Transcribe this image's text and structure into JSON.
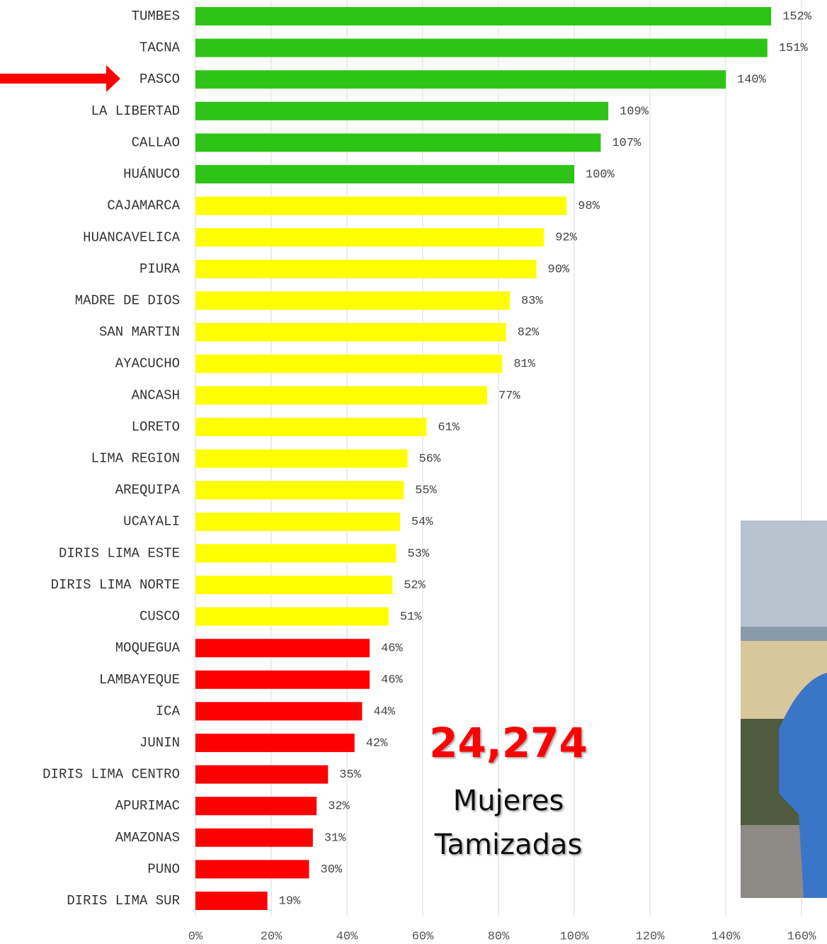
{
  "chart_data": {
    "type": "bar",
    "orientation": "horizontal",
    "categories": [
      "TUMBES",
      "TACNA",
      "PASCO",
      "LA LIBERTAD",
      "CALLAO",
      "HUÁNUCO",
      "CAJAMARCA",
      "HUANCAVELICA",
      "PIURA",
      "MADRE DE DIOS",
      "SAN MARTIN",
      "AYACUCHO",
      "ANCASH",
      "LORETO",
      "LIMA REGION",
      "AREQUIPA",
      "UCAYALI",
      "DIRIS LIMA ESTE",
      "DIRIS LIMA NORTE",
      "CUSCO",
      "MOQUEGUA",
      "LAMBAYEQUE",
      "ICA",
      "JUNIN",
      "DIRIS LIMA CENTRO",
      "APURIMAC",
      "AMAZONAS",
      "PUNO",
      "DIRIS LIMA SUR"
    ],
    "values": [
      152,
      151,
      140,
      109,
      107,
      100,
      98,
      92,
      90,
      83,
      82,
      81,
      77,
      61,
      56,
      55,
      54,
      53,
      52,
      51,
      46,
      46,
      44,
      42,
      35,
      32,
      31,
      30,
      19
    ],
    "value_labels": [
      "152%",
      "151%",
      "140%",
      "109%",
      "107%",
      "100%",
      "98%",
      "92%",
      "90%",
      "83%",
      "82%",
      "81%",
      "77%",
      "61%",
      "56%",
      "55%",
      "54%",
      "53%",
      "52%",
      "51%",
      "46%",
      "46%",
      "44%",
      "42%",
      "35%",
      "32%",
      "31%",
      "30%",
      "19%"
    ],
    "colors": [
      "#2ec417",
      "#2ec417",
      "#2ec417",
      "#2ec417",
      "#2ec417",
      "#2ec417",
      "#ffff00",
      "#ffff00",
      "#ffff00",
      "#ffff00",
      "#ffff00",
      "#ffff00",
      "#ffff00",
      "#ffff00",
      "#ffff00",
      "#ffff00",
      "#ffff00",
      "#ffff00",
      "#ffff00",
      "#ffff00",
      "#ff0000",
      "#ff0000",
      "#ff0000",
      "#ff0000",
      "#ff0000",
      "#ff0000",
      "#ff0000",
      "#ff0000",
      "#ff0000"
    ],
    "xlim": [
      0,
      160
    ],
    "xticks": [
      {
        "value": 0,
        "label": "0%"
      },
      {
        "value": 20,
        "label": "20%"
      },
      {
        "value": 40,
        "label": "40%"
      },
      {
        "value": 60,
        "label": "60%"
      },
      {
        "value": 80,
        "label": "80%"
      },
      {
        "value": 100,
        "label": "100%"
      },
      {
        "value": 120,
        "label": "120%"
      },
      {
        "value": 140,
        "label": "140%"
      },
      {
        "value": 160,
        "label": "160%"
      }
    ],
    "grid": true,
    "annotations": [
      "24,274",
      "Mujeres",
      "Tamizadas"
    ]
  }
}
